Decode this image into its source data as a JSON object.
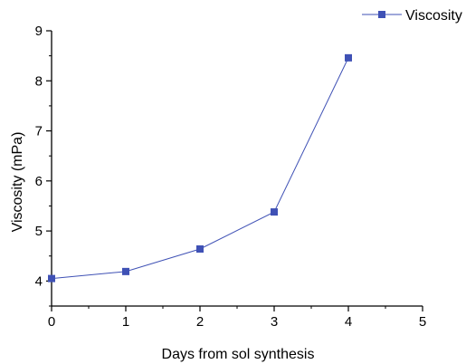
{
  "chart_data": {
    "type": "line",
    "title": "",
    "xlabel": "Days from sol synthesis",
    "ylabel": "Viscosity (mPa)",
    "xlim": [
      0,
      5
    ],
    "ylim": [
      3.5,
      9
    ],
    "x_ticks": [
      "0",
      "1",
      "2",
      "3",
      "4",
      "5"
    ],
    "y_ticks": [
      "4",
      "5",
      "6",
      "7",
      "8",
      "9"
    ],
    "grid": false,
    "legend_position": "top-right",
    "series": [
      {
        "name": "Viscosity",
        "color": "#3f51b5",
        "marker": "square",
        "x": [
          0,
          1,
          2,
          3,
          4
        ],
        "y": [
          4.05,
          4.19,
          4.64,
          5.38,
          8.46
        ]
      }
    ]
  }
}
